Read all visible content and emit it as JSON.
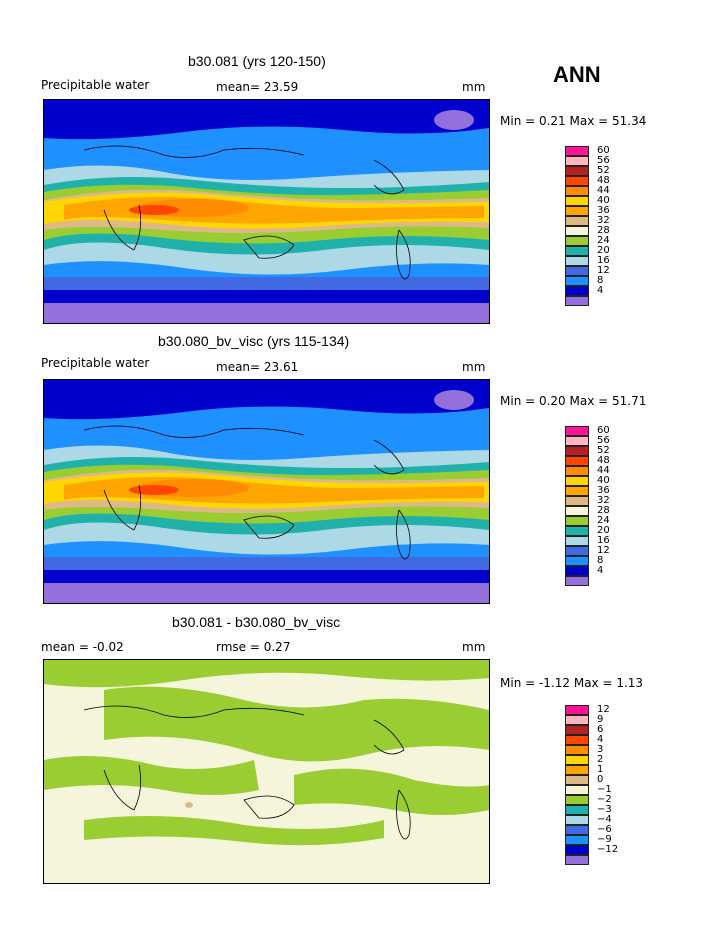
{
  "season": "ANN",
  "panels": [
    {
      "title": "b30.081 (yrs 120-150)",
      "left_label": "Precipitable water",
      "mid_label": "mean=  23.59",
      "units": "mm",
      "minmax": "Min =   0.21 Max =  51.34"
    },
    {
      "title": "b30.080_bv_visc (yrs 115-134)",
      "left_label": "Precipitable water",
      "mid_label": "mean=  23.61",
      "units": "mm",
      "minmax": "Min =   0.20 Max =  51.71"
    },
    {
      "title": "b30.081 - b30.080_bv_visc",
      "left_label": "mean =  -0.02",
      "mid_label": "rmse =   0.27",
      "units": "mm",
      "minmax": "Min =  -1.12 Max =   1.13"
    }
  ],
  "colors": {
    "c4": "#9370DB",
    "c8": "#0000CD",
    "c12": "#1E90FF",
    "c16": "#4169E1",
    "c20": "#ADD8E6",
    "c24": "#20B2AA",
    "c28": "#9ACD32",
    "c32": "#F5F5DC",
    "c36": "#DEB887",
    "c40": "#FFA500",
    "c44": "#FFD700",
    "c48": "#FF8C00",
    "c52": "#FF4500",
    "c56": "#FFB6C1",
    "c60": "#FF1493"
  },
  "chart_data": [
    {
      "type": "heatmap",
      "title": "b30.081 (yrs 120-150)",
      "variable": "Precipitable water",
      "units": "mm",
      "mean": 23.59,
      "min": 0.21,
      "max": 51.34,
      "contour_levels": [
        "4",
        "8",
        "12",
        "16",
        "20",
        "24",
        "28",
        "32",
        "36",
        "40",
        "44",
        "48",
        "52",
        "56",
        "60"
      ]
    },
    {
      "type": "heatmap",
      "title": "b30.080_bv_visc (yrs 115-134)",
      "variable": "Precipitable water",
      "units": "mm",
      "mean": 23.61,
      "min": 0.2,
      "max": 51.71,
      "contour_levels": [
        "4",
        "8",
        "12",
        "16",
        "20",
        "24",
        "28",
        "32",
        "36",
        "40",
        "44",
        "48",
        "52",
        "56",
        "60"
      ]
    },
    {
      "type": "heatmap",
      "title": "b30.081 - b30.080_bv_visc",
      "units": "mm",
      "mean": -0.02,
      "rmse": 0.27,
      "min": -1.12,
      "max": 1.13,
      "contour_levels": [
        "−12",
        "−9",
        "−6",
        "−4",
        "−3",
        "−2",
        "−1",
        "0",
        "1",
        "2",
        "3",
        "4",
        "6",
        "9",
        "12"
      ]
    }
  ],
  "legend_colors": [
    "#9370DB",
    "#0000CD",
    "#1E90FF",
    "#4169E1",
    "#ADD8E6",
    "#20B2AA",
    "#9ACD32",
    "#F5F5DC",
    "#DEB887",
    "#FFA500",
    "#FFD700",
    "#FF8C00",
    "#FF4500",
    "#B22222",
    "#FFB6C1",
    "#FF1493"
  ]
}
